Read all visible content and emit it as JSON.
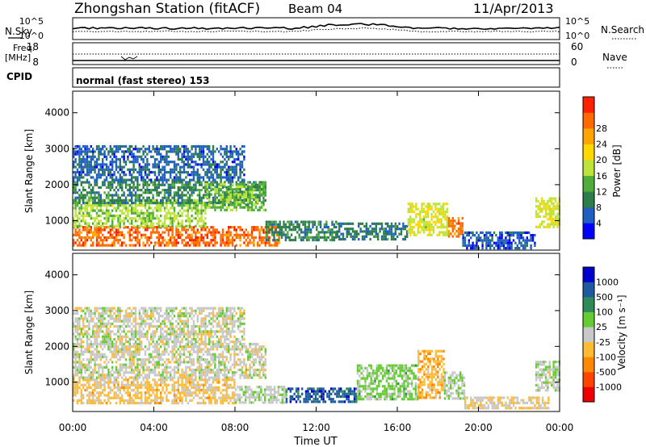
{
  "header": {
    "station": "Zhongshan Station (fitACF)",
    "beam": "Beam 04",
    "date": "11/Apr/2013"
  },
  "top_panel": {
    "nsky_label": "N.Sky",
    "nsearch_label": "N.Search",
    "left_ticks": [
      "10^5",
      "10^0"
    ],
    "right_ticks": [
      "10^5",
      "10^0"
    ],
    "freq_label": "Freq.",
    "freq_unit": "[MHz]",
    "freq_ticks": [
      "18",
      "8"
    ],
    "nave_label": "Nave",
    "nave_ticks": [
      "60",
      "0"
    ],
    "cpid_label": "CPID",
    "cpid_text": "normal (fast stereo) 153"
  },
  "colors": {
    "power": [
      "#0000ff",
      "#1f5fbf",
      "#2d7d4a",
      "#4fae3a",
      "#bde33a",
      "#ffd800",
      "#ffa500",
      "#ff6a00",
      "#ff2000"
    ],
    "velocity": [
      "#ee0000",
      "#ff4400",
      "#ff8800",
      "#ffbb33",
      "#c8c8c8",
      "#66cc33",
      "#2e8b57",
      "#1e5aa0",
      "#0000cc"
    ]
  },
  "chart_data": [
    {
      "type": "heatmap",
      "title": "Power",
      "ylabel": "Slant Range [km]",
      "xlabel": "Time UT",
      "x_ticks": [
        "00:00",
        "04:00",
        "08:00",
        "12:00",
        "16:00",
        "20:00",
        "00:00"
      ],
      "y_ticks": [
        1000,
        2000,
        3000,
        4000
      ],
      "xlim": [
        0,
        24
      ],
      "ylim": [
        180,
        4600
      ],
      "colorbar": {
        "label": "Power [dB]",
        "ticks": [
          4,
          8,
          12,
          16,
          20,
          24,
          28
        ],
        "range": [
          0,
          32
        ]
      },
      "regions": [
        {
          "t": [
            0.0,
            10.2
          ],
          "r": [
            300,
            850
          ],
          "value": 27
        },
        {
          "t": [
            0.0,
            6.5
          ],
          "r": [
            850,
            1600
          ],
          "value": 15
        },
        {
          "t": [
            0.0,
            9.5
          ],
          "r": [
            1500,
            2100
          ],
          "value": 9
        },
        {
          "t": [
            0.0,
            8.5
          ],
          "r": [
            2100,
            3100
          ],
          "value": 6
        },
        {
          "t": [
            6.5,
            9.5
          ],
          "r": [
            1300,
            2050
          ],
          "value": 13
        },
        {
          "t": [
            9.5,
            13.0
          ],
          "r": [
            450,
            1000
          ],
          "value": 9
        },
        {
          "t": [
            13.0,
            16.5
          ],
          "r": [
            500,
            950
          ],
          "value": 8
        },
        {
          "t": [
            16.5,
            18.5
          ],
          "r": [
            600,
            1500
          ],
          "value": 17
        },
        {
          "t": [
            18.5,
            19.2
          ],
          "r": [
            550,
            1100
          ],
          "value": 26
        },
        {
          "t": [
            19.2,
            22.8
          ],
          "r": [
            250,
            700
          ],
          "value": 5
        },
        {
          "t": [
            22.8,
            24.0
          ],
          "r": [
            800,
            1650
          ],
          "value": 18
        }
      ]
    },
    {
      "type": "heatmap",
      "title": "Velocity",
      "ylabel": "Slant Range [km]",
      "xlabel": "Time UT",
      "x_ticks": [
        "00:00",
        "04:00",
        "08:00",
        "12:00",
        "16:00",
        "20:00",
        "00:00"
      ],
      "y_ticks": [
        1000,
        2000,
        3000,
        4000
      ],
      "xlim": [
        0,
        24
      ],
      "ylim": [
        180,
        4600
      ],
      "colorbar": {
        "label": "Velocity [m s⁻¹]",
        "ticks": [
          "-1000",
          "-500",
          "-100",
          "-25",
          "25",
          "100",
          "500",
          "1000"
        ],
        "range": [
          -1200,
          1200
        ]
      },
      "regions": [
        {
          "t": [
            0.0,
            8.0
          ],
          "r": [
            400,
            1100
          ],
          "value": -200
        },
        {
          "t": [
            0.0,
            9.5
          ],
          "r": [
            1100,
            2100
          ],
          "value": 0
        },
        {
          "t": [
            0.0,
            8.5
          ],
          "r": [
            2100,
            3100
          ],
          "value": 0
        },
        {
          "t": [
            8.0,
            10.5
          ],
          "r": [
            450,
            900
          ],
          "value": 80
        },
        {
          "t": [
            10.5,
            14.0
          ],
          "r": [
            450,
            850
          ],
          "value": 800
        },
        {
          "t": [
            14.0,
            17.0
          ],
          "r": [
            500,
            1500
          ],
          "value": 200
        },
        {
          "t": [
            17.0,
            18.3
          ],
          "r": [
            600,
            1900
          ],
          "value": -300
        },
        {
          "t": [
            18.3,
            19.3
          ],
          "r": [
            550,
            1300
          ],
          "value": 90
        },
        {
          "t": [
            19.3,
            23.5
          ],
          "r": [
            250,
            600
          ],
          "value": -150
        },
        {
          "t": [
            22.8,
            24.0
          ],
          "r": [
            800,
            1600
          ],
          "value": 60
        }
      ]
    }
  ],
  "x_axis": {
    "ticks": [
      "00:00",
      "04:00",
      "08:00",
      "12:00",
      "16:00",
      "20:00",
      "00:00"
    ],
    "label": "Time UT"
  }
}
